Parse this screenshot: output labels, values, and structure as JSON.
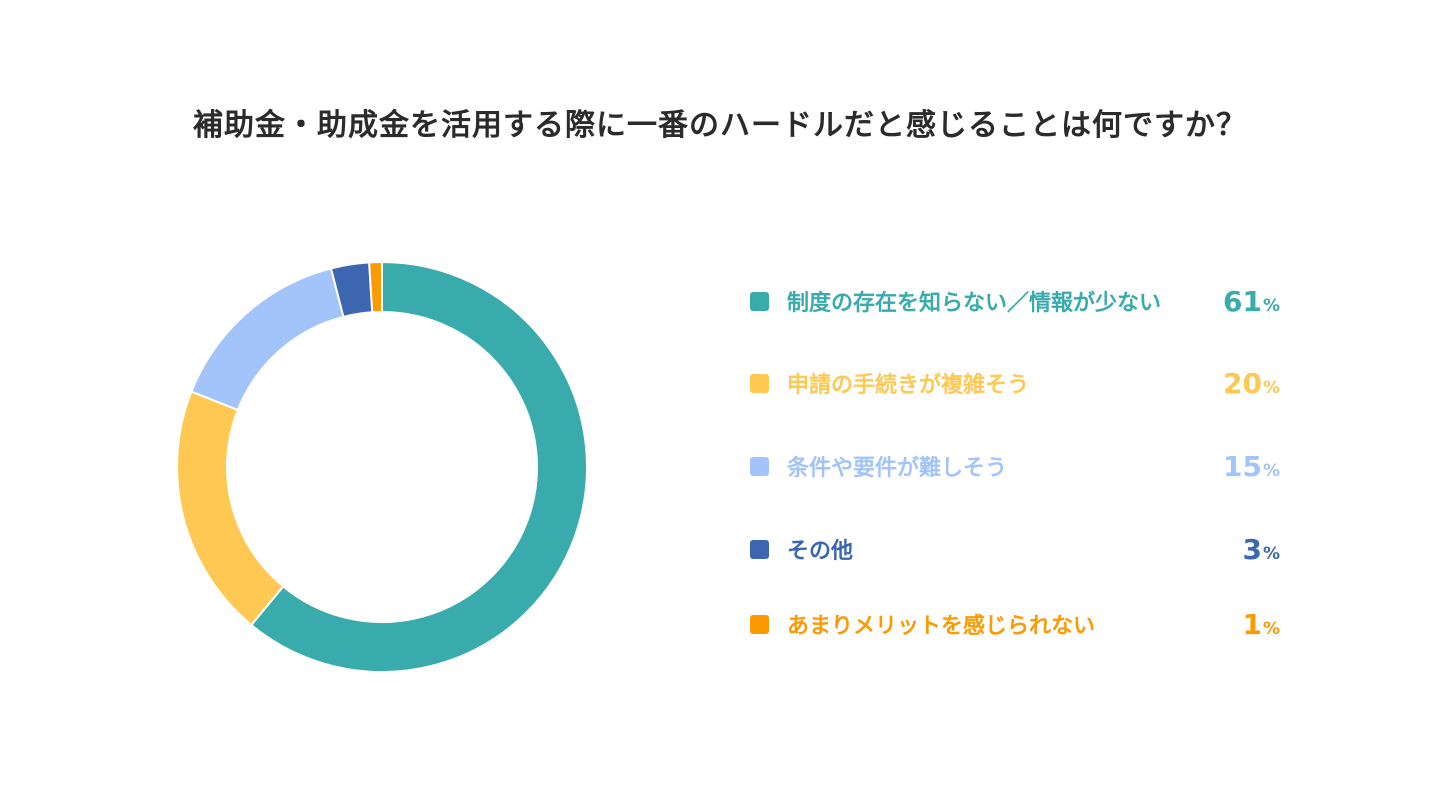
{
  "chart_data": {
    "type": "pie",
    "variant": "donut",
    "title": "補助金・助成金を活用する際に一番のハードルだと感じることは何ですか？",
    "unit": "%",
    "legend_position": "right",
    "categories": [
      "制度の存在を知らない／情報が少ない",
      "申請の手続きが複雑そう",
      "条件や要件が難しそう",
      "その他",
      "あまりメリットを感じられない"
    ],
    "values": [
      61,
      20,
      15,
      3,
      1
    ],
    "colors": [
      "#3aabad",
      "#fec853",
      "#a3c4fa",
      "#3c67b0",
      "#fb9a03"
    ]
  }
}
